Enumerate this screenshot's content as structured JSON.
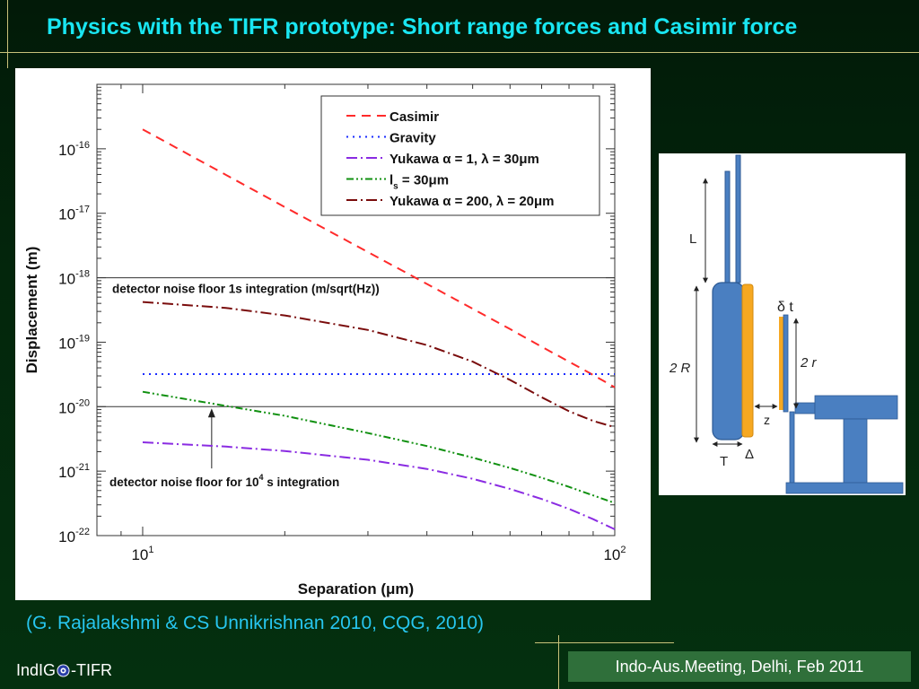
{
  "slide": {
    "title": "Physics with the TIFR prototype: Short range forces and Casimir force",
    "citation": "(G. Rajalakshmi & CS Unnikrishnan 2010, CQG, 2010)",
    "footer_left_pre": "IndIG",
    "footer_left_post": "-TIFR",
    "footer_right": "Indo-Aus.Meeting, Delhi, Feb 2011"
  },
  "chart_data": {
    "type": "line",
    "title": "",
    "xlabel": "Separation (μm)",
    "ylabel": "Displacement (m)",
    "x_scale": "log",
    "y_scale": "log",
    "xlim": [
      8,
      100
    ],
    "ylim": [
      1e-22,
      1e-15
    ],
    "x_ticks": [
      {
        "base": "10",
        "exp": "1"
      },
      {
        "base": "10",
        "exp": "2"
      }
    ],
    "y_ticks": [
      {
        "base": "10",
        "exp": "-16"
      },
      {
        "base": "10",
        "exp": "-17"
      },
      {
        "base": "10",
        "exp": "-18"
      },
      {
        "base": "10",
        "exp": "-19"
      },
      {
        "base": "10",
        "exp": "-20"
      },
      {
        "base": "10",
        "exp": "-21"
      },
      {
        "base": "10",
        "exp": "-22"
      }
    ],
    "legend_position": "top-right",
    "legend": [
      {
        "label": "Casimir",
        "color": "#ff2a2a",
        "dash": "dashed"
      },
      {
        "label": "Gravity",
        "color": "#1a2cff",
        "dash": "dotted"
      },
      {
        "label": "Yukawa α = 1, λ = 30μm",
        "color": "#8a2be2",
        "dash": "dashdot"
      },
      {
        "label_pre": "l",
        "label_sub": "s",
        "label_post": " =  30μm",
        "color": "#109010",
        "dash": "dashdotdot"
      },
      {
        "label": "Yukawa α = 200, λ = 20μm",
        "color": "#7a0c0c",
        "dash": "dashdot"
      }
    ],
    "series": [
      {
        "name": "Casimir",
        "color": "#ff2a2a",
        "dash": "10,7",
        "x": [
          10,
          20,
          30,
          40,
          50,
          60,
          70,
          80,
          90,
          100
        ],
        "y": [
          2e-16,
          1.25e-17,
          2.5e-18,
          8e-19,
          3.3e-19,
          1.6e-19,
          8.5e-20,
          5e-20,
          3.1e-20,
          2e-20
        ]
      },
      {
        "name": "Gravity",
        "color": "#1a2cff",
        "dash": "2,5",
        "x": [
          10,
          100
        ],
        "y": [
          3.2e-20,
          3.2e-20
        ]
      },
      {
        "name": "Yukawa α = 1, λ = 30μm",
        "color": "#8a2be2",
        "dash": "12,4,2,4",
        "x": [
          10,
          15,
          20,
          30,
          40,
          50,
          60,
          70,
          80,
          90,
          100
        ],
        "y": [
          2.8e-21,
          2.4e-21,
          2.05e-21,
          1.5e-21,
          1.08e-21,
          7.6e-22,
          5.3e-22,
          3.7e-22,
          2.6e-22,
          1.8e-22,
          1.25e-22
        ]
      },
      {
        "name": "l_s = 30μm",
        "color": "#109010",
        "dash": "8,3,2,3,2,3",
        "x": [
          10,
          15,
          20,
          30,
          40,
          50,
          60,
          70,
          80,
          90,
          100
        ],
        "y": [
          1.7e-20,
          1.03e-20,
          7.2e-21,
          3.9e-21,
          2.45e-21,
          1.62e-21,
          1.12e-21,
          7.9e-22,
          5.7e-22,
          4.2e-22,
          3.2e-22
        ]
      },
      {
        "name": "Yukawa α = 200, λ = 20μm",
        "color": "#7a0c0c",
        "dash": "12,4,2,4",
        "x": [
          10,
          15,
          20,
          30,
          40,
          50,
          60,
          70,
          80,
          90,
          100
        ],
        "y": [
          4.2e-19,
          3.4e-19,
          2.6e-19,
          1.55e-19,
          9e-20,
          5e-20,
          2.6e-20,
          1.4e-20,
          8.5e-21,
          6e-21,
          4.8e-21
        ]
      }
    ],
    "hlines": [
      {
        "y": 1e-18,
        "label": "detector noise floor 1s integration (m/sqrt(Hz))"
      },
      {
        "y": 1e-20,
        "label_pre": "detector noise floor for 10",
        "label_sup": "4",
        "label_post": " s integration"
      }
    ],
    "annotation_arrow": {
      "x": 14,
      "y_from": 1.1e-21,
      "y_to": 1e-20
    }
  },
  "diagram": {
    "labels": {
      "L": "L",
      "R": "2 R",
      "r": "2 r",
      "dt": "δ t",
      "z": "z",
      "T": "T",
      "Delta": "Δ"
    },
    "colors": {
      "blue": "#4a7fc1",
      "orange": "#f6a821"
    }
  }
}
